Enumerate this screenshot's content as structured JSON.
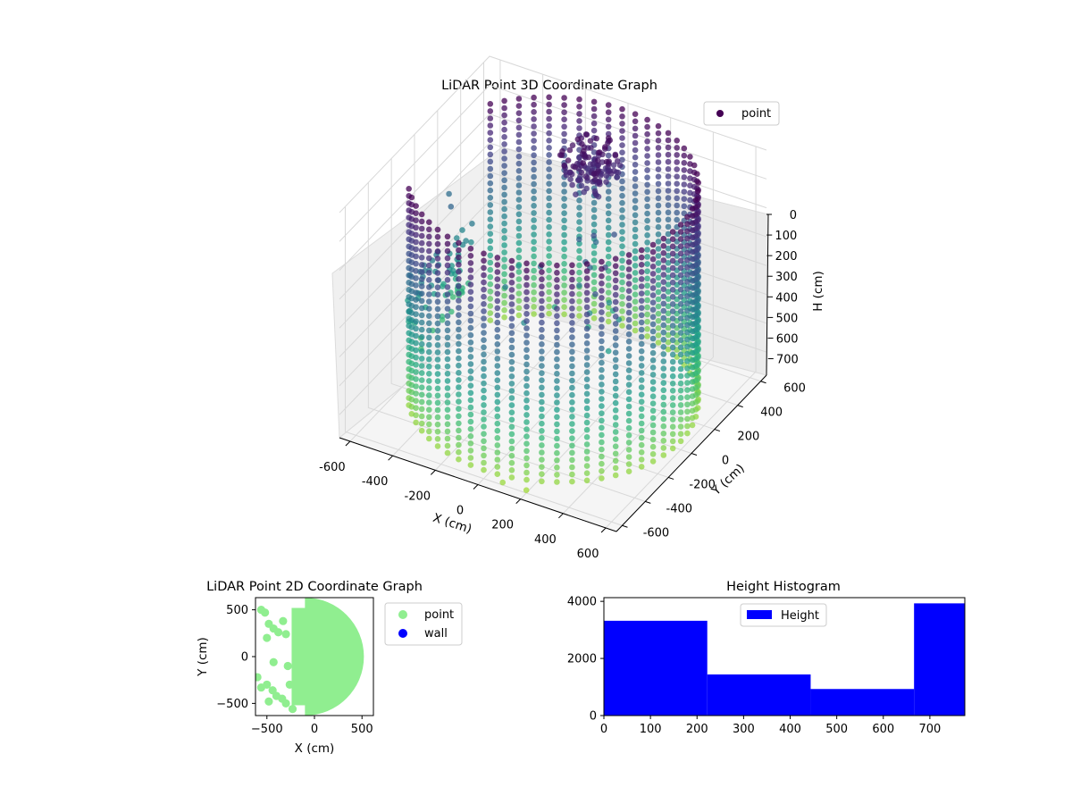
{
  "figure": {
    "background": "#ffffff"
  },
  "chart_data": [
    {
      "id": "lidar-3d",
      "type": "scatter",
      "title": "LiDAR Point 3D Coordinate Graph",
      "xlabel": "X (cm)",
      "ylabel": "Y (cm)",
      "zlabel": "H (cm)",
      "xlim": [
        -650,
        650
      ],
      "ylim": [
        -650,
        650
      ],
      "zlim": [
        780,
        0
      ],
      "zaxis_inverted": true,
      "x_ticks": [
        "-600",
        "-400",
        "-200",
        "0",
        "200",
        "400",
        "600"
      ],
      "y_ticks": [
        "-600",
        "-400",
        "-200",
        "0",
        "200",
        "400",
        "600"
      ],
      "z_ticks": [
        "0",
        "100",
        "200",
        "300",
        "400",
        "500",
        "600",
        "700"
      ],
      "grid": true,
      "legend": {
        "position": "top-right",
        "entries": [
          {
            "label": "point",
            "color": "#440154"
          }
        ]
      },
      "colormap": "viridis",
      "series": [
        {
          "name": "point",
          "description_of_shape": "cylindrical wall of points, radius ~600 cm, height 0-750 cm, open on the negative-X side, plus interior clusters",
          "wall": {
            "radius": 600,
            "h_min": 0,
            "h_max": 750,
            "open_from_deg": 145,
            "open_to_deg": 215
          },
          "outliers": [
            {
              "x": -640,
              "y": 280,
              "h": 320
            },
            {
              "x": -600,
              "y": -150,
              "h": 500
            },
            {
              "x": -560,
              "y": 150,
              "h": 290
            },
            {
              "x": 100,
              "y": -620,
              "h": 760
            },
            {
              "x": 200,
              "y": -600,
              "h": 770
            },
            {
              "x": -560,
              "y": 200,
              "h": 420
            }
          ]
        }
      ]
    },
    {
      "id": "lidar-2d",
      "type": "scatter",
      "title": "LiDAR Point 2D Coordinate Graph",
      "xlabel": "X (cm)",
      "ylabel": "Y (cm)",
      "xlim": [
        -620,
        620
      ],
      "ylim": [
        -630,
        630
      ],
      "x_ticks": [
        -500,
        0,
        500
      ],
      "y_ticks": [
        -500,
        0,
        500
      ],
      "grid": false,
      "legend": {
        "position": "outside-right",
        "entries": [
          {
            "label": "point",
            "color": "#90ee90"
          },
          {
            "label": "wall",
            "color": "#0000ff"
          }
        ]
      },
      "series": [
        {
          "name": "point",
          "color": "#90ee90",
          "region": "filled disc radius ~600 cm centered at origin; sparse scattered points on negative-X side"
        },
        {
          "name": "wall",
          "color": "#0000ff",
          "points": []
        }
      ]
    },
    {
      "id": "height-hist",
      "type": "bar",
      "title": "Height Histogram",
      "xlabel": "",
      "ylabel": "",
      "bin_edges": [
        0,
        222,
        444,
        666,
        775
      ],
      "values": [
        3320,
        1440,
        930,
        3930
      ],
      "xlim": [
        0,
        775
      ],
      "ylim": [
        0,
        4130
      ],
      "x_ticks": [
        0,
        100,
        200,
        300,
        400,
        500,
        600,
        700
      ],
      "y_ticks": [
        0,
        2000,
        4000
      ],
      "color": "#0000ff",
      "legend": {
        "position": "top-center",
        "entries": [
          {
            "label": "Height",
            "color": "#0000ff"
          }
        ]
      }
    }
  ]
}
